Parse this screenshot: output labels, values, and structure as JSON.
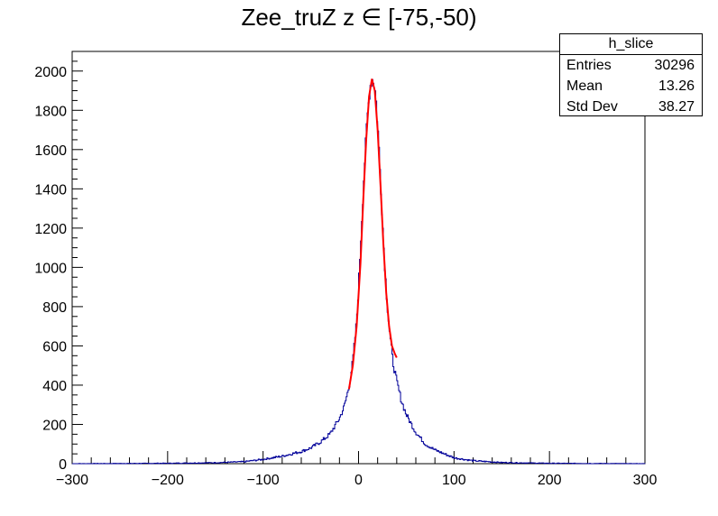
{
  "title": "Zee_truZ z  ∈ [-75,-50)",
  "stats_box": {
    "name": "h_slice",
    "rows": [
      {
        "label": "Entries",
        "value": "30296"
      },
      {
        "label": "Mean",
        "value": "13.26"
      },
      {
        "label": "Std Dev",
        "value": "38.27"
      }
    ]
  },
  "chart_data": {
    "type": "histogram",
    "title": "Zee_truZ z  ∈ [-75,-50)",
    "xlabel": "",
    "ylabel": "",
    "xlim": [
      -300,
      300
    ],
    "ylim": [
      0,
      2100
    ],
    "x_ticks": [
      -300,
      -200,
      -100,
      0,
      100,
      200,
      300
    ],
    "y_ticks": [
      0,
      200,
      400,
      600,
      800,
      1000,
      1200,
      1400,
      1600,
      1800,
      2000
    ],
    "bins": 600,
    "grid": false,
    "histogram_color": "#000099",
    "fit_color": "#ff0000",
    "histogram_points": [
      [
        -300,
        0
      ],
      [
        -200,
        2
      ],
      [
        -150,
        5
      ],
      [
        -120,
        10
      ],
      [
        -100,
        22
      ],
      [
        -90,
        30
      ],
      [
        -80,
        38
      ],
      [
        -70,
        50
      ],
      [
        -60,
        62
      ],
      [
        -50,
        80
      ],
      [
        -40,
        110
      ],
      [
        -30,
        150
      ],
      [
        -20,
        230
      ],
      [
        -15,
        290
      ],
      [
        -10,
        390
      ],
      [
        -6,
        520
      ],
      [
        -2,
        720
      ],
      [
        0,
        900
      ],
      [
        3,
        1200
      ],
      [
        6,
        1500
      ],
      [
        9,
        1750
      ],
      [
        12,
        1920
      ],
      [
        14,
        1960
      ],
      [
        16,
        1950
      ],
      [
        18,
        1880
      ],
      [
        21,
        1650
      ],
      [
        24,
        1350
      ],
      [
        27,
        1050
      ],
      [
        30,
        820
      ],
      [
        33,
        650
      ],
      [
        36,
        520
      ],
      [
        40,
        420
      ],
      [
        45,
        320
      ],
      [
        50,
        250
      ],
      [
        60,
        160
      ],
      [
        70,
        100
      ],
      [
        80,
        70
      ],
      [
        90,
        50
      ],
      [
        100,
        30
      ],
      [
        120,
        15
      ],
      [
        150,
        6
      ],
      [
        200,
        2
      ],
      [
        300,
        0
      ]
    ],
    "fit": {
      "x_range": [
        -10,
        40
      ],
      "points": [
        [
          -10,
          380
        ],
        [
          -6,
          500
        ],
        [
          -2,
          700
        ],
        [
          2,
          1020
        ],
        [
          5,
          1350
        ],
        [
          8,
          1650
        ],
        [
          11,
          1870
        ],
        [
          14,
          1960
        ],
        [
          17,
          1900
        ],
        [
          20,
          1700
        ],
        [
          23,
          1420
        ],
        [
          26,
          1120
        ],
        [
          29,
          870
        ],
        [
          32,
          700
        ],
        [
          35,
          600
        ],
        [
          38,
          560
        ],
        [
          40,
          540
        ]
      ]
    }
  }
}
